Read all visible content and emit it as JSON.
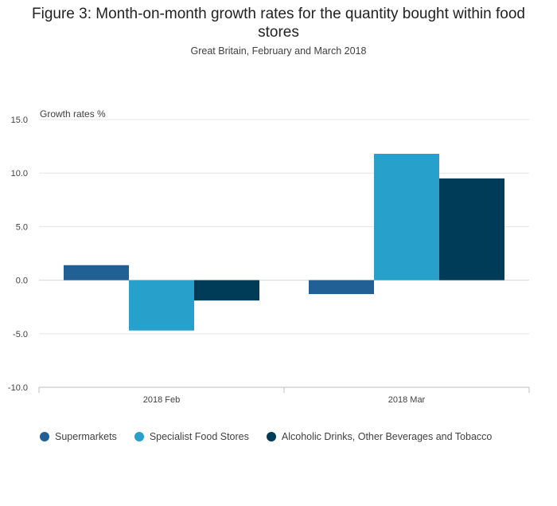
{
  "title": "Figure 3: Month-on-month growth rates for the quantity bought within food stores",
  "subtitle": "Great Britain, February and March 2018",
  "chart_data": {
    "type": "bar",
    "ylabel": "Growth rates %",
    "xlabel": "",
    "categories": [
      "2018 Feb",
      "2018 Mar"
    ],
    "ylim": [
      -10,
      15
    ],
    "yticks": [
      "15.0",
      "10.0",
      "5.0",
      "0.0",
      "-5.0",
      "-10.0"
    ],
    "ytick_values": [
      15,
      10,
      5,
      0,
      -5,
      -10
    ],
    "grid": true,
    "legend_position": "bottom",
    "series": [
      {
        "name": "Supermarkets",
        "color": "#206095",
        "values": [
          1.4,
          -1.3
        ]
      },
      {
        "name": "Specialist Food Stores",
        "color": "#27a0cc",
        "values": [
          -4.7,
          11.8
        ]
      },
      {
        "name": "Alcoholic Drinks, Other Beverages and Tobacco",
        "color": "#003c57",
        "values": [
          -1.9,
          9.5
        ]
      }
    ]
  }
}
